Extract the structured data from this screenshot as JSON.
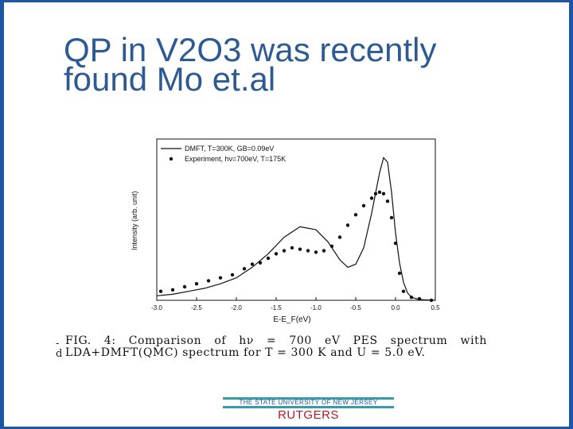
{
  "slide": {
    "title_lines": [
      "QP in V2O3 was recently",
      "found  Mo et.al"
    ],
    "caption": "FIG. 4: Comparison of hν = 700 eV PES spectrum with LDA+DMFT(QMC) spectrum for T = 300 K and U = 5.0 eV.",
    "margin_marks": [
      "-",
      "d"
    ],
    "footer": {
      "university_text": "THE STATE UNIVERSITY OF NEW JERSEY",
      "brand": "RUTGERS"
    },
    "colors": {
      "title": "#2e5a93",
      "frame": "#1c56a6",
      "footer_bar": "#3a9ba8",
      "brand": "#b5172b"
    }
  },
  "chart_data": {
    "type": "line",
    "xlabel": "E-E_F(eV)",
    "ylabel": "Intensity (arb. unit)",
    "xlim": [
      -3.0,
      0.5
    ],
    "ylim": [
      0,
      1.0
    ],
    "x_ticks": [
      "-3.0",
      "-2.5",
      "-2.0",
      "-1.5",
      "-1.0",
      "-0.5",
      "0.0",
      "0.5"
    ],
    "legend_position": "top-left",
    "series": [
      {
        "name": "DMFT, T=300K, GB=0.09eV",
        "style": "line",
        "x": [
          -3.0,
          -2.8,
          -2.6,
          -2.4,
          -2.2,
          -2.0,
          -1.8,
          -1.6,
          -1.4,
          -1.2,
          -1.0,
          -0.85,
          -0.7,
          -0.6,
          -0.5,
          -0.4,
          -0.3,
          -0.2,
          -0.15,
          -0.1,
          -0.05,
          0.0,
          0.05,
          0.1,
          0.15,
          0.2,
          0.3,
          0.5
        ],
        "y": [
          0.03,
          0.04,
          0.06,
          0.08,
          0.11,
          0.15,
          0.22,
          0.31,
          0.42,
          0.49,
          0.47,
          0.39,
          0.27,
          0.22,
          0.24,
          0.35,
          0.58,
          0.85,
          0.95,
          0.92,
          0.72,
          0.45,
          0.25,
          0.12,
          0.05,
          0.02,
          0.005,
          0.0
        ]
      },
      {
        "name": "Experiment, hν=700eV, T=175K",
        "style": "markers",
        "x": [
          -2.95,
          -2.8,
          -2.65,
          -2.5,
          -2.35,
          -2.2,
          -2.05,
          -1.9,
          -1.8,
          -1.7,
          -1.6,
          -1.5,
          -1.4,
          -1.3,
          -1.2,
          -1.1,
          -1.0,
          -0.9,
          -0.8,
          -0.7,
          -0.6,
          -0.5,
          -0.4,
          -0.3,
          -0.25,
          -0.2,
          -0.15,
          -0.1,
          -0.05,
          0.0,
          0.05,
          0.1,
          0.2,
          0.3,
          0.45
        ],
        "y": [
          0.06,
          0.07,
          0.09,
          0.11,
          0.13,
          0.15,
          0.17,
          0.21,
          0.24,
          0.25,
          0.28,
          0.31,
          0.33,
          0.35,
          0.34,
          0.33,
          0.32,
          0.33,
          0.36,
          0.42,
          0.5,
          0.57,
          0.63,
          0.68,
          0.71,
          0.72,
          0.71,
          0.66,
          0.55,
          0.38,
          0.18,
          0.06,
          0.02,
          0.01,
          0.0
        ]
      }
    ]
  }
}
